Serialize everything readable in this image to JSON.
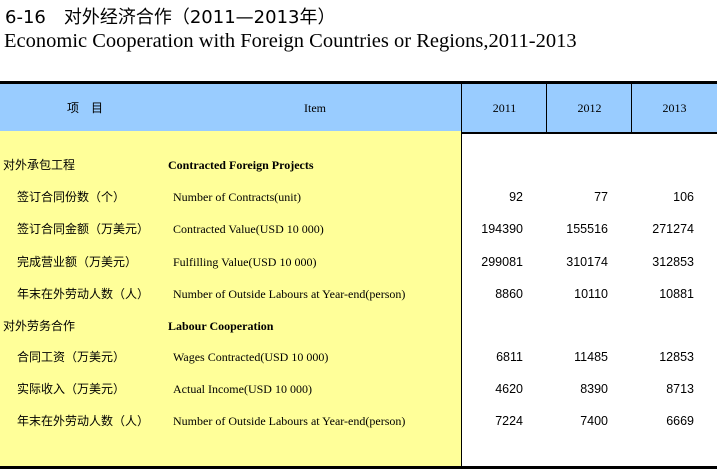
{
  "title_zh": "6-16　对外经济合作（2011—2013年）",
  "title_en": "Economic Cooperation with Foreign Countries or Regions,2011-2013",
  "header": {
    "item_zh": "项　目",
    "item_en": "Item",
    "years": [
      "2011",
      "2012",
      "2013"
    ]
  },
  "rows": [
    {
      "type": "section",
      "zh": "对外承包工程",
      "en": "Contracted Foreign Projects",
      "values": [
        "",
        "",
        ""
      ]
    },
    {
      "type": "item",
      "zh": "签订合同份数（个）",
      "en": "Number of Contracts(unit)",
      "values": [
        "92",
        "77",
        "106"
      ]
    },
    {
      "type": "item",
      "zh": "签订合同金额（万美元）",
      "en": "Contracted Value(USD 10 000)",
      "values": [
        "194390",
        "155516",
        "271274"
      ]
    },
    {
      "type": "item",
      "zh": "完成营业额（万美元）",
      "en": "Fulfilling Value(USD 10 000)",
      "values": [
        "299081",
        "310174",
        "312853"
      ]
    },
    {
      "type": "item",
      "zh": "年末在外劳动人数（人）",
      "en": "Number of Outside Labours at Year-end(person)",
      "values": [
        "8860",
        "10110",
        "10881"
      ]
    },
    {
      "type": "section",
      "zh": "对外劳务合作",
      "en": "Labour Cooperation",
      "values": [
        "",
        "",
        ""
      ]
    },
    {
      "type": "item",
      "zh": "合同工资（万美元）",
      "en": "Wages Contracted(USD 10 000)",
      "values": [
        "6811",
        "11485",
        "12853"
      ]
    },
    {
      "type": "item",
      "zh": "实际收入（万美元）",
      "en": "Actual Income(USD 10 000)",
      "values": [
        "4620",
        "8390",
        "8713"
      ]
    },
    {
      "type": "item",
      "zh": "年末在外劳动人数（人）",
      "en": "Number of Outside Labours at Year-end(person)",
      "values": [
        "7224",
        "7400",
        "6669"
      ]
    }
  ],
  "colors": {
    "header_bg": "#99ccff",
    "label_bg": "#ffff99"
  }
}
